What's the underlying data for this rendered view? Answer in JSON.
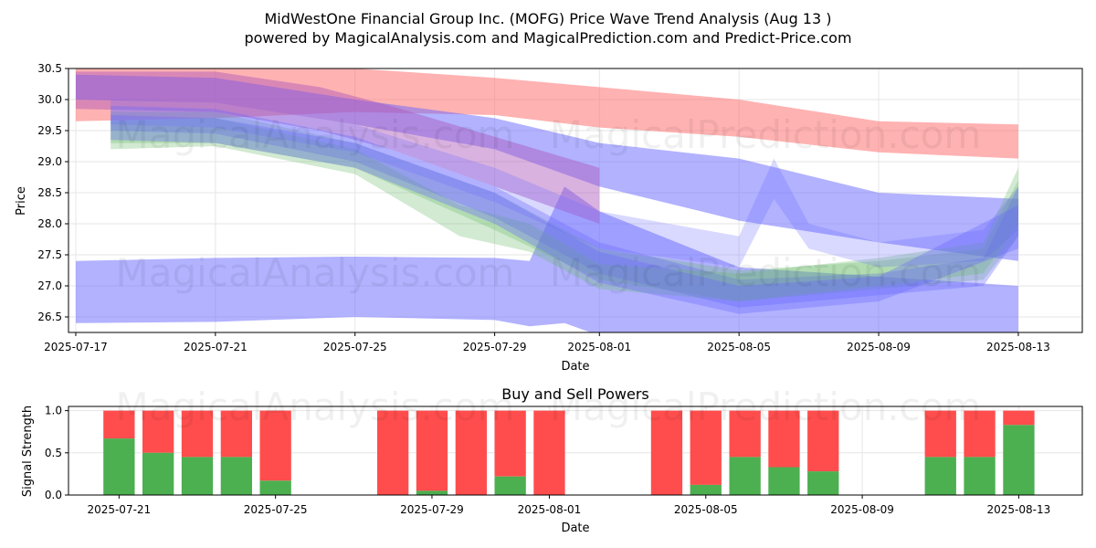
{
  "header": {
    "title_line1": "MidWestOne Financial Group Inc. (MOFG) Price Wave Trend Analysis (Aug 13 )",
    "title_line2": "powered by MagicalAnalysis.com and MagicalPrediction.com and Predict-Price.com"
  },
  "watermarks": [
    "MagicalAnalysis.com",
    "MagicalPrediction.com"
  ],
  "colors": {
    "red_band": "#ff6666",
    "blue_band": "#6666ff",
    "green_band": "#66bb66",
    "buy": "#4caf50",
    "sell": "#ff4d4d"
  },
  "chart_data": [
    {
      "type": "area",
      "title": "",
      "xlabel": "Date",
      "ylabel": "Price",
      "xlim": [
        "2025-07-16T19:00",
        "2025-08-14T20:00"
      ],
      "ylim": [
        26.25,
        30.5
      ],
      "xticks": [
        "2025-07-17",
        "2025-07-21",
        "2025-07-25",
        "2025-07-29",
        "2025-08-01",
        "2025-08-05",
        "2025-08-09",
        "2025-08-13"
      ],
      "yticks": [
        26.5,
        27.0,
        27.5,
        28.0,
        28.5,
        29.0,
        29.5,
        30.0,
        30.5
      ],
      "grid": true,
      "bands": [
        {
          "color": "red",
          "opacity": 0.5,
          "x": [
            "2025-07-17",
            "2025-07-21",
            "2025-07-25",
            "2025-07-29",
            "2025-08-01",
            "2025-08-05",
            "2025-08-09",
            "2025-08-13"
          ],
          "upper": [
            30.6,
            30.6,
            30.5,
            30.35,
            30.2,
            30.0,
            29.65,
            29.6
          ],
          "lower": [
            29.65,
            29.7,
            29.8,
            29.75,
            29.55,
            29.4,
            29.15,
            29.05
          ]
        },
        {
          "color": "blue",
          "opacity": 0.5,
          "x": [
            "2025-07-17",
            "2025-07-21",
            "2025-07-25",
            "2025-07-29",
            "2025-07-30",
            "2025-07-31",
            "2025-08-01",
            "2025-08-05",
            "2025-08-09",
            "2025-08-13"
          ],
          "upper": [
            27.4,
            27.45,
            27.47,
            27.45,
            27.4,
            28.6,
            28.2,
            27.3,
            27.15,
            27.0
          ],
          "lower": [
            26.4,
            26.42,
            26.5,
            26.45,
            26.35,
            26.4,
            26.2,
            26.15,
            26.2,
            26.25
          ]
        },
        {
          "color": "blue",
          "opacity": 0.5,
          "x": [
            "2025-07-17",
            "2025-07-21",
            "2025-07-25",
            "2025-07-29",
            "2025-08-01",
            "2025-08-05",
            "2025-08-09",
            "2025-08-13"
          ],
          "upper": [
            30.4,
            30.35,
            30.0,
            29.7,
            29.3,
            29.05,
            28.5,
            28.4
          ],
          "lower": [
            30.0,
            29.95,
            29.6,
            29.2,
            28.6,
            28.05,
            27.7,
            27.4
          ]
        },
        {
          "color": "purple",
          "opacity": 0.45,
          "x": [
            "2025-07-17",
            "2025-07-21",
            "2025-07-24",
            "2025-07-26",
            "2025-07-29",
            "2025-08-01"
          ],
          "upper": [
            30.45,
            30.45,
            30.2,
            29.9,
            29.4,
            28.9
          ],
          "lower": [
            29.85,
            29.8,
            29.5,
            29.2,
            28.6,
            28.0
          ]
        },
        {
          "color": "green",
          "opacity": 0.3,
          "x": [
            "2025-07-18",
            "2025-07-21",
            "2025-07-25",
            "2025-07-29",
            "2025-08-01",
            "2025-08-05",
            "2025-08-09",
            "2025-08-12",
            "2025-08-13"
          ],
          "upper": [
            29.8,
            29.8,
            29.3,
            28.5,
            27.6,
            27.25,
            27.4,
            27.6,
            28.7
          ],
          "lower": [
            29.3,
            29.3,
            28.9,
            27.9,
            27.1,
            26.75,
            26.95,
            27.1,
            27.8
          ]
        },
        {
          "color": "blue",
          "opacity": 0.35,
          "x": [
            "2025-07-18",
            "2025-07-21",
            "2025-07-25",
            "2025-07-29",
            "2025-08-01",
            "2025-08-05",
            "2025-08-09",
            "2025-08-12",
            "2025-08-13"
          ],
          "upper": [
            29.9,
            29.85,
            29.4,
            28.6,
            27.7,
            27.1,
            27.2,
            27.45,
            28.6
          ],
          "lower": [
            29.5,
            29.45,
            29.0,
            28.1,
            27.2,
            26.65,
            26.85,
            27.0,
            27.8
          ]
        },
        {
          "color": "green",
          "opacity": 0.3,
          "x": [
            "2025-07-18",
            "2025-07-21",
            "2025-07-25",
            "2025-07-28",
            "2025-07-30",
            "2025-08-01",
            "2025-08-05",
            "2025-08-09",
            "2025-08-12",
            "2025-08-13"
          ],
          "upper": [
            29.65,
            29.7,
            29.2,
            28.3,
            28.0,
            27.35,
            27.2,
            27.45,
            27.7,
            28.9
          ],
          "lower": [
            29.2,
            29.25,
            28.8,
            27.8,
            27.55,
            26.95,
            26.75,
            27.0,
            27.2,
            28.0
          ]
        },
        {
          "color": "blue",
          "opacity": 0.25,
          "x": [
            "2025-07-18",
            "2025-07-21",
            "2025-07-25",
            "2025-07-29",
            "2025-08-01",
            "2025-08-05",
            "2025-08-06",
            "2025-08-07",
            "2025-08-09",
            "2025-08-12",
            "2025-08-13"
          ],
          "upper": [
            30.0,
            29.95,
            29.6,
            28.9,
            28.2,
            27.8,
            29.05,
            28.0,
            27.7,
            27.9,
            28.6
          ],
          "lower": [
            29.6,
            29.55,
            29.15,
            28.35,
            27.6,
            27.3,
            28.4,
            27.6,
            27.3,
            27.4,
            27.9
          ]
        },
        {
          "color": "blue",
          "opacity": 0.35,
          "x": [
            "2025-07-18",
            "2025-07-21",
            "2025-07-25",
            "2025-07-29",
            "2025-08-01",
            "2025-08-05",
            "2025-08-09",
            "2025-08-13"
          ],
          "upper": [
            29.75,
            29.7,
            29.3,
            28.5,
            27.55,
            27.0,
            27.15,
            28.3
          ],
          "lower": [
            29.35,
            29.3,
            28.9,
            28.0,
            27.05,
            26.55,
            26.75,
            27.6
          ]
        }
      ]
    },
    {
      "type": "bar",
      "title": "Buy and Sell Powers",
      "xlabel": "Date",
      "ylabel": "Signal Strength",
      "xlim": [
        "2025-07-19T17:00",
        "2025-08-14T15:00"
      ],
      "ylim": [
        0,
        1.05
      ],
      "xticks": [
        "2025-07-21",
        "2025-07-25",
        "2025-07-29",
        "2025-08-01",
        "2025-08-05",
        "2025-08-09",
        "2025-08-13"
      ],
      "yticks": [
        0.0,
        0.5,
        1.0
      ],
      "grid": true,
      "series": [
        {
          "name": "Buy",
          "color": "#4caf50"
        },
        {
          "name": "Sell",
          "color": "#ff4d4d"
        }
      ],
      "dates": [
        "2025-07-21",
        "2025-07-22",
        "2025-07-23",
        "2025-07-24",
        "2025-07-25",
        "2025-07-28",
        "2025-07-29",
        "2025-07-30",
        "2025-07-31",
        "2025-08-01",
        "2025-08-04",
        "2025-08-05",
        "2025-08-06",
        "2025-08-07",
        "2025-08-08",
        "2025-08-11",
        "2025-08-12",
        "2025-08-13"
      ],
      "buy": [
        0.67,
        0.5,
        0.45,
        0.45,
        0.17,
        0.0,
        0.05,
        0.0,
        0.22,
        0.0,
        0.0,
        0.12,
        0.45,
        0.33,
        0.28,
        0.45,
        0.45,
        0.83
      ]
    }
  ]
}
